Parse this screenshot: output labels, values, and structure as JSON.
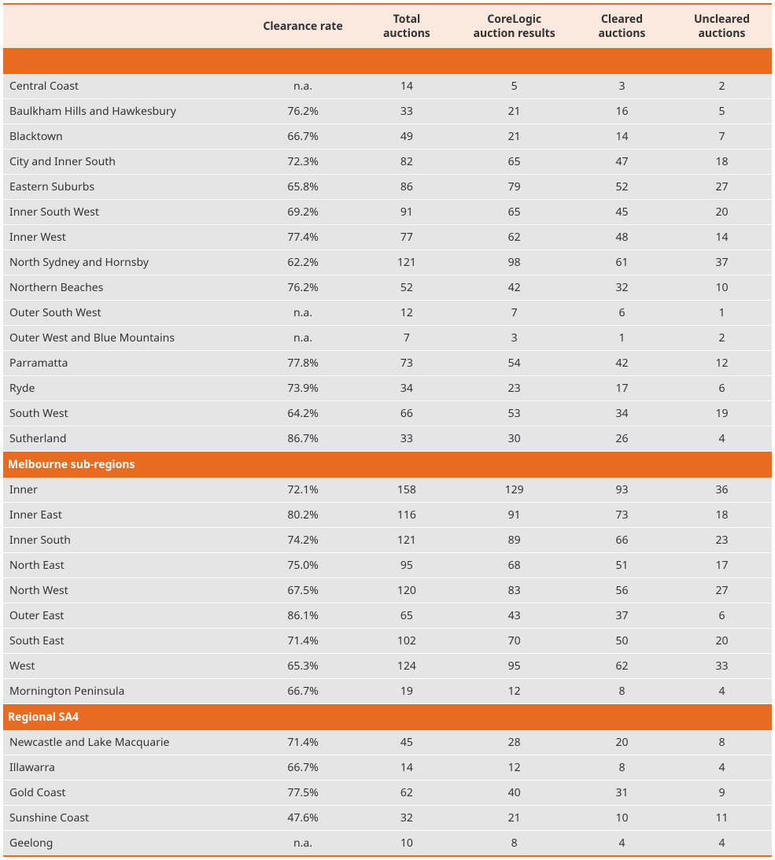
{
  "table": {
    "columns": [
      "",
      "Clearance rate",
      "Total auctions",
      "CoreLogic auction results",
      "Cleared auctions",
      "Uncleared auctions"
    ],
    "column_headers_html": [
      "",
      "Clearance rate",
      "Total<br>auctions",
      "CoreLogic<br>auction results",
      "Cleared<br>auctions",
      "Uncleared<br>auctions"
    ],
    "header_bg": "#fbe8df",
    "section_bg": "#e86b1f",
    "section_fg": "#ffffff",
    "row_bg": "#e5e5e5",
    "row_separator": "#ffffff",
    "text_color": "#333333",
    "border_color": "#e86b1f",
    "font_size_pt": 11,
    "sections": [
      {
        "label": "",
        "rows": [
          [
            "Central Coast",
            "n.a.",
            "14",
            "5",
            "3",
            "2"
          ],
          [
            "Baulkham Hills and Hawkesbury",
            "76.2%",
            "33",
            "21",
            "16",
            "5"
          ],
          [
            "Blacktown",
            "66.7%",
            "49",
            "21",
            "14",
            "7"
          ],
          [
            "City and Inner South",
            "72.3%",
            "82",
            "65",
            "47",
            "18"
          ],
          [
            "Eastern Suburbs",
            "65.8%",
            "86",
            "79",
            "52",
            "27"
          ],
          [
            "Inner South West",
            "69.2%",
            "91",
            "65",
            "45",
            "20"
          ],
          [
            "Inner West",
            "77.4%",
            "77",
            "62",
            "48",
            "14"
          ],
          [
            "North Sydney and Hornsby",
            "62.2%",
            "121",
            "98",
            "61",
            "37"
          ],
          [
            "Northern Beaches",
            "76.2%",
            "52",
            "42",
            "32",
            "10"
          ],
          [
            "Outer South West",
            "n.a.",
            "12",
            "7",
            "6",
            "1"
          ],
          [
            "Outer West and Blue Mountains",
            "n.a.",
            "7",
            "3",
            "1",
            "2"
          ],
          [
            "Parramatta",
            "77.8%",
            "73",
            "54",
            "42",
            "12"
          ],
          [
            "Ryde",
            "73.9%",
            "34",
            "23",
            "17",
            "6"
          ],
          [
            "South West",
            "64.2%",
            "66",
            "53",
            "34",
            "19"
          ],
          [
            "Sutherland",
            "86.7%",
            "33",
            "30",
            "26",
            "4"
          ]
        ]
      },
      {
        "label": "Melbourne sub-regions",
        "rows": [
          [
            "Inner",
            "72.1%",
            "158",
            "129",
            "93",
            "36"
          ],
          [
            "Inner East",
            "80.2%",
            "116",
            "91",
            "73",
            "18"
          ],
          [
            "Inner South",
            "74.2%",
            "121",
            "89",
            "66",
            "23"
          ],
          [
            "North East",
            "75.0%",
            "95",
            "68",
            "51",
            "17"
          ],
          [
            "North West",
            "67.5%",
            "120",
            "83",
            "56",
            "27"
          ],
          [
            "Outer East",
            "86.1%",
            "65",
            "43",
            "37",
            "6"
          ],
          [
            "South East",
            "71.4%",
            "102",
            "70",
            "50",
            "20"
          ],
          [
            "West",
            "65.3%",
            "124",
            "95",
            "62",
            "33"
          ],
          [
            "Mornington Peninsula",
            "66.7%",
            "19",
            "12",
            "8",
            "4"
          ]
        ]
      },
      {
        "label": "Regional SA4",
        "rows": [
          [
            "Newcastle and Lake Macquarie",
            "71.4%",
            "45",
            "28",
            "20",
            "8"
          ],
          [
            "Illawarra",
            "66.7%",
            "14",
            "12",
            "8",
            "4"
          ],
          [
            "Gold Coast",
            "77.5%",
            "62",
            "40",
            "31",
            "9"
          ],
          [
            "Sunshine Coast",
            "47.6%",
            "32",
            "21",
            "10",
            "11"
          ],
          [
            "Geelong",
            "n.a.",
            "10",
            "8",
            "4",
            "4"
          ]
        ]
      }
    ]
  }
}
